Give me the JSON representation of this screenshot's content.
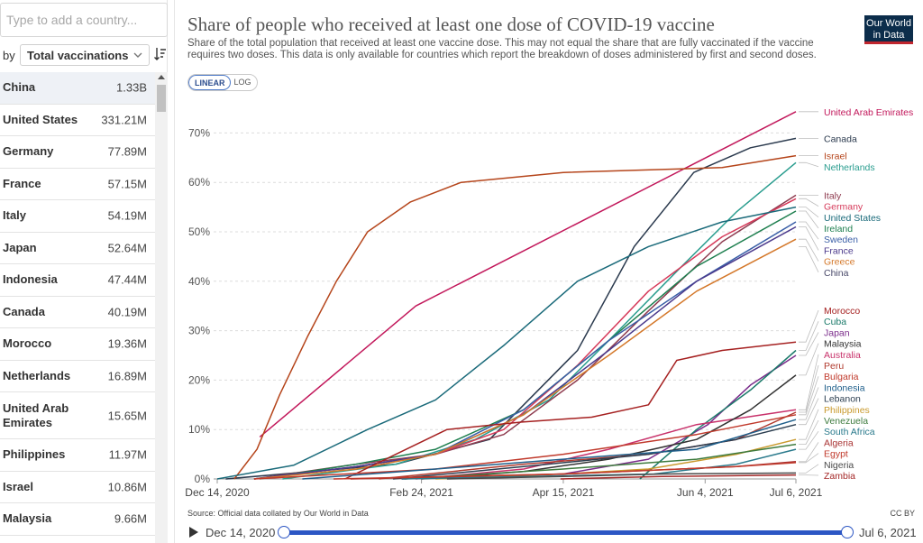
{
  "search": {
    "placeholder": "Type to add a country..."
  },
  "sort": {
    "by_label": "by",
    "selected": "Total vaccinations"
  },
  "countries": [
    {
      "name": "China",
      "value": "1.33B"
    },
    {
      "name": "United States",
      "value": "331.21M"
    },
    {
      "name": "Germany",
      "value": "77.89M"
    },
    {
      "name": "France",
      "value": "57.15M"
    },
    {
      "name": "Italy",
      "value": "54.19M"
    },
    {
      "name": "Japan",
      "value": "52.64M"
    },
    {
      "name": "Indonesia",
      "value": "47.44M"
    },
    {
      "name": "Canada",
      "value": "40.19M"
    },
    {
      "name": "Morocco",
      "value": "19.36M"
    },
    {
      "name": "Netherlands",
      "value": "16.89M"
    },
    {
      "name": "United Arab Emirates",
      "value": "15.65M"
    },
    {
      "name": "Philippines",
      "value": "11.97M"
    },
    {
      "name": "Israel",
      "value": "10.86M"
    },
    {
      "name": "Malaysia",
      "value": "9.66M"
    }
  ],
  "header": {
    "title": "Share of people who received at least one dose of COVID-19 vaccine",
    "subtitle": "Share of the total population that received at least one vaccine dose. This may not equal the share that are fully vaccinated if the vaccine requires two doses. This data is only available for countries which report the breakdown of doses administered by first and second doses.",
    "logo_line1": "Our World",
    "logo_line2": "in Data"
  },
  "scale_toggle": {
    "linear": "LINEAR",
    "log": "LOG",
    "active": "linear"
  },
  "footer": {
    "source": "Source: Official data collated by Our World in Data",
    "license": "CC BY"
  },
  "timeline": {
    "start": "Dec 14, 2020",
    "end": "Jul 6, 2021"
  },
  "colors": {
    "accent": "#2c56c4",
    "logo_bg": "#0c2d4b",
    "logo_red": "#c0262e"
  },
  "chart_data": {
    "type": "line",
    "title": "Share of people who received at least one dose of COVID-19 vaccine",
    "x_type": "date",
    "x_ticks": [
      {
        "date": "2020-12-14",
        "label": "Dec 14, 2020"
      },
      {
        "date": "2021-02-24",
        "label": "Feb 24, 2021"
      },
      {
        "date": "2021-04-15",
        "label": "Apr 15, 2021"
      },
      {
        "date": "2021-06-04",
        "label": "Jun 4, 2021"
      },
      {
        "date": "2021-07-06",
        "label": "Jul 6, 2021"
      }
    ],
    "xlim": [
      "2020-12-14",
      "2021-07-06"
    ],
    "y_ticks": [
      0,
      10,
      20,
      30,
      40,
      50,
      60,
      70
    ],
    "y_tick_labels": [
      "0%",
      "10%",
      "20%",
      "30%",
      "40%",
      "50%",
      "60%",
      "70%"
    ],
    "ylim": [
      0,
      75
    ],
    "grid": "horizontal dashed",
    "series": [
      {
        "name": "United Arab Emirates",
        "color": "#c2185b",
        "points": [
          [
            "2020-12-29",
            8.5
          ],
          [
            "2021-02-22",
            35
          ],
          [
            "2021-07-06",
            74.3
          ]
        ]
      },
      {
        "name": "Canada",
        "color": "#2b3a4e",
        "points": [
          [
            "2020-12-17",
            0
          ],
          [
            "2021-02-15",
            3
          ],
          [
            "2021-03-20",
            8
          ],
          [
            "2021-04-20",
            26
          ],
          [
            "2021-05-10",
            47
          ],
          [
            "2021-05-31",
            62
          ],
          [
            "2021-06-20",
            67
          ],
          [
            "2021-07-06",
            68.9
          ]
        ]
      },
      {
        "name": "Israel",
        "color": "#b5451b",
        "points": [
          [
            "2020-12-20",
            0
          ],
          [
            "2020-12-28",
            6
          ],
          [
            "2021-01-05",
            17
          ],
          [
            "2021-01-15",
            29
          ],
          [
            "2021-01-25",
            40
          ],
          [
            "2021-02-05",
            50
          ],
          [
            "2021-02-20",
            56
          ],
          [
            "2021-03-10",
            60
          ],
          [
            "2021-04-15",
            62
          ],
          [
            "2021-06-10",
            63
          ],
          [
            "2021-07-06",
            65.4
          ]
        ]
      },
      {
        "name": "Netherlands",
        "color": "#2a9d8f",
        "points": [
          [
            "2021-01-06",
            0
          ],
          [
            "2021-02-15",
            3
          ],
          [
            "2021-03-15",
            8
          ],
          [
            "2021-04-10",
            16
          ],
          [
            "2021-05-01",
            28
          ],
          [
            "2021-05-25",
            42
          ],
          [
            "2021-06-15",
            54
          ],
          [
            "2021-07-06",
            64
          ]
        ]
      },
      {
        "name": "Italy",
        "color": "#8e3b4f",
        "points": [
          [
            "2020-12-27",
            0
          ],
          [
            "2021-02-01",
            3
          ],
          [
            "2021-03-01",
            5
          ],
          [
            "2021-03-25",
            9
          ],
          [
            "2021-04-20",
            20
          ],
          [
            "2021-05-15",
            34
          ],
          [
            "2021-06-10",
            48
          ],
          [
            "2021-07-06",
            57.4
          ]
        ]
      },
      {
        "name": "Germany",
        "color": "#d63a5a",
        "points": [
          [
            "2020-12-27",
            0
          ],
          [
            "2021-02-01",
            2.5
          ],
          [
            "2021-03-01",
            5
          ],
          [
            "2021-03-25",
            10
          ],
          [
            "2021-04-20",
            23
          ],
          [
            "2021-05-15",
            38
          ],
          [
            "2021-06-10",
            49
          ],
          [
            "2021-07-06",
            56.7
          ]
        ]
      },
      {
        "name": "United States",
        "color": "#1a6a7a",
        "points": [
          [
            "2020-12-14",
            0
          ],
          [
            "2021-01-10",
            2.8
          ],
          [
            "2021-02-05",
            10
          ],
          [
            "2021-03-01",
            16
          ],
          [
            "2021-03-25",
            27
          ],
          [
            "2021-04-20",
            40
          ],
          [
            "2021-05-15",
            47
          ],
          [
            "2021-06-10",
            52
          ],
          [
            "2021-07-06",
            55
          ]
        ]
      },
      {
        "name": "Ireland",
        "color": "#1e7f4f",
        "points": [
          [
            "2020-12-29",
            0
          ],
          [
            "2021-02-01",
            3
          ],
          [
            "2021-03-01",
            6
          ],
          [
            "2021-04-01",
            14
          ],
          [
            "2021-05-01",
            28
          ],
          [
            "2021-06-01",
            43
          ],
          [
            "2021-07-06",
            54.2
          ]
        ]
      },
      {
        "name": "Sweden",
        "color": "#3a5fa7",
        "points": [
          [
            "2020-12-27",
            0
          ],
          [
            "2021-02-01",
            2.5
          ],
          [
            "2021-03-01",
            5
          ],
          [
            "2021-04-01",
            14
          ],
          [
            "2021-05-01",
            28
          ],
          [
            "2021-06-01",
            40
          ],
          [
            "2021-07-06",
            52
          ]
        ]
      },
      {
        "name": "France",
        "color": "#4b3a8c",
        "points": [
          [
            "2020-12-27",
            0
          ],
          [
            "2021-02-01",
            2.5
          ],
          [
            "2021-03-01",
            5
          ],
          [
            "2021-04-01",
            13
          ],
          [
            "2021-05-01",
            26
          ],
          [
            "2021-06-01",
            40
          ],
          [
            "2021-07-06",
            51
          ]
        ]
      },
      {
        "name": "Greece",
        "color": "#d4782a",
        "points": [
          [
            "2020-12-27",
            0
          ],
          [
            "2021-02-01",
            2
          ],
          [
            "2021-03-01",
            5
          ],
          [
            "2021-04-01",
            13
          ],
          [
            "2021-05-01",
            25
          ],
          [
            "2021-06-01",
            38
          ],
          [
            "2021-07-06",
            48.5
          ]
        ]
      },
      {
        "name": "Morocco",
        "color": "#a52020",
        "points": [
          [
            "2021-01-28",
            0
          ],
          [
            "2021-02-15",
            5
          ],
          [
            "2021-03-05",
            10
          ],
          [
            "2021-03-31",
            11.5
          ],
          [
            "2021-04-25",
            12.5
          ],
          [
            "2021-05-15",
            15
          ],
          [
            "2021-05-25",
            24
          ],
          [
            "2021-06-10",
            26
          ],
          [
            "2021-07-06",
            27.7
          ]
        ]
      },
      {
        "name": "Japan",
        "color": "#7b2d8b",
        "points": [
          [
            "2021-02-17",
            0
          ],
          [
            "2021-04-15",
            1
          ],
          [
            "2021-05-15",
            4
          ],
          [
            "2021-06-05",
            11
          ],
          [
            "2021-06-20",
            19
          ],
          [
            "2021-07-06",
            25
          ]
        ]
      },
      {
        "name": "Cuba",
        "color": "#1b7a6a",
        "points": [
          [
            "2021-05-12",
            0
          ],
          [
            "2021-06-01",
            10
          ],
          [
            "2021-06-20",
            18
          ],
          [
            "2021-07-06",
            26
          ]
        ]
      },
      {
        "name": "Australia",
        "color": "#c8326b",
        "points": [
          [
            "2021-02-22",
            0
          ],
          [
            "2021-04-01",
            2
          ],
          [
            "2021-05-01",
            6
          ],
          [
            "2021-06-01",
            11
          ],
          [
            "2021-07-06",
            14
          ]
        ]
      },
      {
        "name": "Malaysia",
        "color": "#333333",
        "points": [
          [
            "2021-02-24",
            0
          ],
          [
            "2021-04-01",
            1.5
          ],
          [
            "2021-05-01",
            4
          ],
          [
            "2021-06-01",
            8
          ],
          [
            "2021-06-20",
            14
          ],
          [
            "2021-07-06",
            21
          ]
        ]
      },
      {
        "name": "Peru",
        "color": "#b03a2e",
        "points": [
          [
            "2021-02-09",
            0
          ],
          [
            "2021-04-01",
            3
          ],
          [
            "2021-05-15",
            5
          ],
          [
            "2021-06-15",
            8
          ],
          [
            "2021-07-06",
            13.5
          ]
        ]
      },
      {
        "name": "Bulgaria",
        "color": "#c0392b",
        "points": [
          [
            "2020-12-27",
            0
          ],
          [
            "2021-03-01",
            2
          ],
          [
            "2021-04-15",
            5
          ],
          [
            "2021-06-01",
            9
          ],
          [
            "2021-07-06",
            13
          ]
        ]
      },
      {
        "name": "Lebanon",
        "color": "#2c3e50",
        "points": [
          [
            "2021-02-14",
            0
          ],
          [
            "2021-04-01",
            2.5
          ],
          [
            "2021-05-15",
            5
          ],
          [
            "2021-06-15",
            8
          ],
          [
            "2021-07-06",
            11
          ]
        ]
      },
      {
        "name": "Indonesia",
        "color": "#1f5f8b",
        "points": [
          [
            "2021-01-13",
            0
          ],
          [
            "2021-03-01",
            2
          ],
          [
            "2021-04-15",
            4
          ],
          [
            "2021-06-01",
            6
          ],
          [
            "2021-07-06",
            12
          ]
        ]
      },
      {
        "name": "Philippines",
        "color": "#c99a2e",
        "points": [
          [
            "2021-03-01",
            0
          ],
          [
            "2021-04-15",
            1
          ],
          [
            "2021-05-15",
            2
          ],
          [
            "2021-06-15",
            5
          ],
          [
            "2021-07-06",
            8
          ]
        ]
      },
      {
        "name": "Venezuela",
        "color": "#3e7b3e",
        "points": [
          [
            "2021-02-18",
            0
          ],
          [
            "2021-04-15",
            2
          ],
          [
            "2021-06-01",
            4
          ],
          [
            "2021-07-06",
            7
          ]
        ]
      },
      {
        "name": "South Africa",
        "color": "#2a7a8c",
        "points": [
          [
            "2021-02-17",
            0
          ],
          [
            "2021-05-17",
            1
          ],
          [
            "2021-06-15",
            3
          ],
          [
            "2021-07-06",
            6
          ]
        ]
      },
      {
        "name": "Algeria",
        "color": "#a83232",
        "points": [
          [
            "2021-01-30",
            0
          ],
          [
            "2021-04-15",
            1
          ],
          [
            "2021-06-15",
            2.5
          ],
          [
            "2021-07-06",
            3.5
          ]
        ]
      },
      {
        "name": "Egypt",
        "color": "#c0392b",
        "points": [
          [
            "2021-01-24",
            0
          ],
          [
            "2021-04-15",
            1
          ],
          [
            "2021-06-15",
            2.5
          ],
          [
            "2021-07-06",
            3.3
          ]
        ]
      },
      {
        "name": "Nigeria",
        "color": "#4a4a4a",
        "points": [
          [
            "2021-03-05",
            0
          ],
          [
            "2021-04-15",
            0.5
          ],
          [
            "2021-05-20",
            1
          ],
          [
            "2021-07-06",
            1.2
          ]
        ]
      },
      {
        "name": "Zambia",
        "color": "#a52a2a",
        "points": [
          [
            "2021-04-14",
            0
          ],
          [
            "2021-05-20",
            0.5
          ],
          [
            "2021-07-06",
            0.8
          ]
        ]
      },
      {
        "name": "China",
        "color": "#8a9ba8",
        "points": [],
        "label_only": true
      }
    ]
  }
}
